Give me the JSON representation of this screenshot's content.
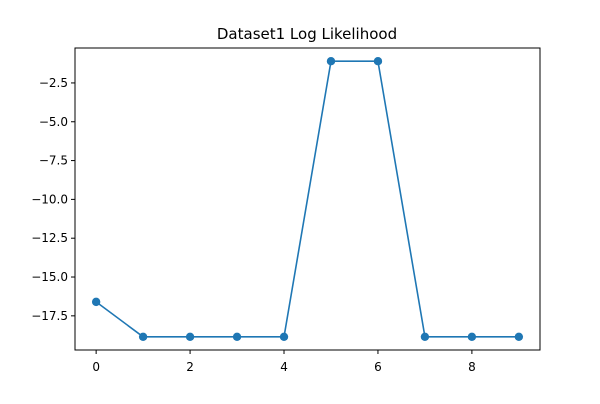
{
  "chart_data": {
    "type": "line",
    "title": "Dataset1 Log Likelihood",
    "xlabel": "",
    "ylabel": "",
    "x": [
      0,
      1,
      2,
      3,
      4,
      5,
      6,
      7,
      8,
      9
    ],
    "series": [
      {
        "values": [
          -16.6,
          -18.85,
          -18.85,
          -18.85,
          -18.85,
          -1.1,
          -1.1,
          -18.85,
          -18.85,
          -18.85
        ],
        "color": "#1f77b4",
        "marker": "circle"
      }
    ],
    "xlim": [
      -0.45,
      9.45
    ],
    "ylim": [
      -19.7,
      -0.25
    ],
    "xticks": [
      0,
      2,
      4,
      6,
      8
    ],
    "xtick_labels": [
      "0",
      "2",
      "4",
      "6",
      "8"
    ],
    "yticks": [
      -2.5,
      -5.0,
      -7.5,
      -10.0,
      -12.5,
      -15.0,
      -17.5
    ],
    "ytick_labels": [
      "−2.5",
      "−5.0",
      "−7.5",
      "−10.0",
      "−12.5",
      "−15.0",
      "−17.5"
    ],
    "grid": false,
    "legend": false
  }
}
